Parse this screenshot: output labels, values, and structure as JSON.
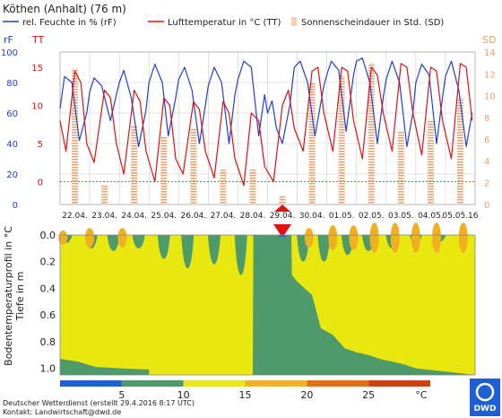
{
  "header": {
    "station": "Köthen (Anhalt) (76 m)"
  },
  "legend": [
    {
      "label": "rel. Feuchte in % (rF)",
      "color": "#1f3fd6"
    },
    {
      "label": "Lufttemperatur in °C (TT)",
      "color": "#e01010"
    },
    {
      "label": "Sonnenscheindauer in Std. (SD)",
      "color": "#e8a070"
    }
  ],
  "colors": {
    "humidity": "#1f3fd6",
    "temperature": "#e01010",
    "sunshine": "#e8a070",
    "today_marker": "#e01010",
    "soil_green": "#4e9a6b",
    "soil_yellow": "#e8e810",
    "soil_orange": "#f0b020",
    "soil_blue": "#1f5fd6"
  },
  "chart_data": [
    {
      "type": "line",
      "axes": {
        "left1": {
          "label": "rF",
          "ticks": [
            "0",
            "20",
            "40",
            "60",
            "80",
            "100"
          ],
          "range": [
            0,
            100
          ]
        },
        "left2": {
          "label": "TT",
          "ticks": [
            "0",
            "5",
            "10",
            "15"
          ],
          "range": [
            -3,
            17
          ]
        },
        "right": {
          "label": "SD",
          "ticks": [
            "0",
            "2",
            "4",
            "6",
            "8",
            "10",
            "12",
            "14"
          ],
          "range": [
            0,
            14
          ]
        }
      },
      "categories": [
        "22.04.",
        "23.04.",
        "24.04.",
        "25.04.",
        "26.04.",
        "27.04.",
        "28.04.",
        "29.04.",
        "30.04.",
        "01.05.",
        "02.05.",
        "03.05.",
        "04.05.",
        "05.05.16"
      ],
      "highlight_category": "29.04.",
      "series": [
        {
          "name": "rel. Feuchte in % (rF)",
          "axis": "rF",
          "values": [
            [
              0.0,
              63
            ],
            [
              0.15,
              84
            ],
            [
              0.4,
              80
            ],
            [
              0.65,
              42
            ],
            [
              0.9,
              60
            ],
            [
              1.0,
              74
            ],
            [
              1.15,
              83
            ],
            [
              1.4,
              78
            ],
            [
              1.7,
              55
            ],
            [
              1.9,
              72
            ],
            [
              2.0,
              80
            ],
            [
              2.15,
              88
            ],
            [
              2.4,
              70
            ],
            [
              2.65,
              38
            ],
            [
              2.9,
              62
            ],
            [
              3.0,
              80
            ],
            [
              3.2,
              92
            ],
            [
              3.45,
              80
            ],
            [
              3.65,
              45
            ],
            [
              3.9,
              70
            ],
            [
              4.0,
              82
            ],
            [
              4.2,
              90
            ],
            [
              4.45,
              75
            ],
            [
              4.7,
              40
            ],
            [
              4.9,
              65
            ],
            [
              5.0,
              78
            ],
            [
              5.2,
              90
            ],
            [
              5.45,
              80
            ],
            [
              5.7,
              40
            ],
            [
              5.9,
              72
            ],
            [
              6.0,
              82
            ],
            [
              6.2,
              94
            ],
            [
              6.45,
              90
            ],
            [
              6.7,
              45
            ],
            [
              6.9,
              72
            ],
            [
              7.0,
              60
            ],
            [
              7.15,
              68
            ],
            [
              7.3,
              50
            ],
            [
              7.5,
              40
            ],
            [
              7.75,
              65
            ],
            [
              7.9,
              90
            ],
            [
              8.1,
              94
            ],
            [
              8.35,
              80
            ],
            [
              8.6,
              45
            ],
            [
              8.9,
              78
            ],
            [
              9.0,
              85
            ],
            [
              9.15,
              94
            ],
            [
              9.4,
              88
            ],
            [
              9.65,
              48
            ],
            [
              9.9,
              85
            ],
            [
              10.0,
              94
            ],
            [
              10.2,
              96
            ],
            [
              10.45,
              80
            ],
            [
              10.7,
              40
            ],
            [
              10.9,
              70
            ],
            [
              11.0,
              82
            ],
            [
              11.2,
              94
            ],
            [
              11.45,
              80
            ],
            [
              11.7,
              38
            ],
            [
              11.9,
              60
            ],
            [
              12.0,
              80
            ],
            [
              12.2,
              92
            ],
            [
              12.45,
              85
            ],
            [
              12.7,
              40
            ],
            [
              12.9,
              70
            ],
            [
              13.0,
              84
            ],
            [
              13.2,
              94
            ],
            [
              13.45,
              75
            ],
            [
              13.7,
              38
            ],
            [
              13.9,
              60
            ]
          ]
        },
        {
          "name": "Lufttemperatur in °C (TT)",
          "axis": "TT",
          "values": [
            [
              0.0,
              8.0
            ],
            [
              0.2,
              4.0
            ],
            [
              0.5,
              14.5
            ],
            [
              0.7,
              13.0
            ],
            [
              0.9,
              5.0
            ],
            [
              1.15,
              2.5
            ],
            [
              1.5,
              12.0
            ],
            [
              1.7,
              11.0
            ],
            [
              1.9,
              5.0
            ],
            [
              2.15,
              1.0
            ],
            [
              2.5,
              12.0
            ],
            [
              2.7,
              10.5
            ],
            [
              2.9,
              4.0
            ],
            [
              3.2,
              0.0
            ],
            [
              3.5,
              11.0
            ],
            [
              3.7,
              10.0
            ],
            [
              3.9,
              3.0
            ],
            [
              4.15,
              1.0
            ],
            [
              4.5,
              10.5
            ],
            [
              4.7,
              9.5
            ],
            [
              4.9,
              4.0
            ],
            [
              5.2,
              0.5
            ],
            [
              5.5,
              10.5
            ],
            [
              5.7,
              9.0
            ],
            [
              5.9,
              3.0
            ],
            [
              6.2,
              -0.5
            ],
            [
              6.45,
              9.0
            ],
            [
              6.7,
              8.0
            ],
            [
              6.9,
              2.0
            ],
            [
              7.2,
              0.0
            ],
            [
              7.5,
              10.0
            ],
            [
              7.7,
              12.0
            ],
            [
              7.9,
              7.0
            ],
            [
              8.2,
              4.0
            ],
            [
              8.5,
              14.5
            ],
            [
              8.7,
              15.0
            ],
            [
              8.9,
              9.0
            ],
            [
              9.2,
              4.0
            ],
            [
              9.5,
              15.0
            ],
            [
              9.7,
              14.5
            ],
            [
              9.9,
              8.0
            ],
            [
              10.2,
              3.0
            ],
            [
              10.5,
              15.0
            ],
            [
              10.7,
              14.0
            ],
            [
              10.9,
              9.0
            ],
            [
              11.2,
              4.0
            ],
            [
              11.5,
              15.5
            ],
            [
              11.7,
              15.0
            ],
            [
              11.9,
              9.0
            ],
            [
              12.2,
              3.5
            ],
            [
              12.5,
              15.0
            ],
            [
              12.7,
              14.5
            ],
            [
              12.9,
              8.0
            ],
            [
              13.2,
              3.0
            ],
            [
              13.5,
              15.5
            ],
            [
              13.7,
              15.0
            ],
            [
              13.9,
              8.0
            ]
          ]
        },
        {
          "name": "Sonnenscheindauer in Std. (SD)",
          "axis": "SD",
          "type": "bar",
          "values": [
            [
              0.5,
              12.5
            ],
            [
              1.5,
              1.8
            ],
            [
              2.5,
              7.2
            ],
            [
              3.5,
              6.2
            ],
            [
              4.5,
              7.0
            ],
            [
              5.5,
              3.2
            ],
            [
              6.5,
              3.2
            ],
            [
              7.5,
              0.8
            ],
            [
              8.5,
              11.2
            ],
            [
              9.5,
              11.8
            ],
            [
              10.5,
              13.0
            ],
            [
              11.5,
              6.8
            ],
            [
              12.5,
              7.8
            ],
            [
              13.5,
              9.8
            ]
          ]
        }
      ]
    },
    {
      "type": "heatmap",
      "ylabel": "Bodentemperaturprofil in °C\nTiefe in m",
      "yticks": [
        "0.0",
        "0.2",
        "0.4",
        "0.6",
        "0.8",
        "1.0"
      ],
      "yrange": [
        0,
        1.05
      ],
      "colorbar": {
        "ticks": [
          "5",
          "10",
          "15",
          "20",
          "25",
          "°C"
        ],
        "colors": [
          "#1f5fd6",
          "#4e9a6b",
          "#e8e810",
          "#f0b020",
          "#e07010",
          "#d04010"
        ],
        "bounds": [
          0,
          5,
          10,
          15,
          20,
          25,
          30
        ]
      },
      "green_boundary_depth": [
        [
          0.0,
          0.97
        ],
        [
          0.35,
          0.97
        ],
        [
          0.55,
          0.98
        ],
        [
          0.7,
          1.0
        ],
        [
          1.0,
          1.0
        ],
        [
          1.5,
          1.0
        ],
        [
          3.0,
          1.0
        ],
        [
          3.02,
          1.05
        ],
        [
          6.5,
          1.05
        ],
        [
          6.52,
          0.0
        ],
        [
          7.0,
          0.0
        ],
        [
          7.5,
          0.0
        ],
        [
          7.8,
          0.0
        ],
        [
          7.82,
          0.3
        ],
        [
          8.0,
          0.35
        ],
        [
          8.5,
          0.45
        ],
        [
          8.8,
          0.7
        ],
        [
          9.2,
          0.75
        ],
        [
          9.6,
          0.85
        ],
        [
          10.0,
          0.88
        ],
        [
          10.4,
          0.9
        ],
        [
          10.8,
          0.93
        ],
        [
          11.2,
          0.95
        ],
        [
          11.6,
          0.97
        ],
        [
          12.0,
          1.0
        ],
        [
          14.0,
          1.05
        ]
      ],
      "green_top_depth": [
        [
          0.0,
          0.95
        ],
        [
          3.0,
          0.95
        ],
        [
          6.5,
          0.35
        ],
        [
          7.5,
          0.0
        ],
        [
          7.8,
          0.0
        ],
        [
          14.0,
          0.0
        ]
      ],
      "green_plumes": [
        {
          "day": 0.2,
          "depth": 0.06
        },
        {
          "day": 1.05,
          "depth": 0.1
        },
        {
          "day": 1.8,
          "depth": 0.12
        },
        {
          "day": 2.65,
          "depth": 0.1
        },
        {
          "day": 3.5,
          "depth": 0.18
        },
        {
          "day": 4.3,
          "depth": 0.25
        },
        {
          "day": 5.2,
          "depth": 0.22
        },
        {
          "day": 6.1,
          "depth": 0.3
        },
        {
          "day": 6.8,
          "depth": 0.3
        },
        {
          "day": 8.2,
          "depth": 0.2
        },
        {
          "day": 8.9,
          "depth": 0.2
        },
        {
          "day": 9.7,
          "depth": 0.15
        },
        {
          "day": 10.4,
          "depth": 0.12
        },
        {
          "day": 11.2,
          "depth": 0.1
        },
        {
          "day": 12.0,
          "depth": 0.06
        },
        {
          "day": 12.8,
          "depth": 0.05
        }
      ],
      "warm_spots": [
        {
          "day": 0.1,
          "depth": 0.04
        },
        {
          "day": 1.0,
          "depth": 0.06
        },
        {
          "day": 2.1,
          "depth": 0.06
        },
        {
          "day": 8.4,
          "depth": 0.06
        },
        {
          "day": 9.2,
          "depth": 0.08
        },
        {
          "day": 9.9,
          "depth": 0.08
        },
        {
          "day": 10.6,
          "depth": 0.1
        },
        {
          "day": 11.3,
          "depth": 0.1
        },
        {
          "day": 12.0,
          "depth": 0.1
        },
        {
          "day": 12.7,
          "depth": 0.1
        },
        {
          "day": 13.6,
          "depth": 0.1
        }
      ]
    }
  ],
  "footer": {
    "line1": "Deutscher Wetterdienst (erstellt 29.4.2016 8:17 UTC)",
    "line2": "Kontakt: Landwirtschaft@dwd.de",
    "logo_text": "DWD"
  }
}
